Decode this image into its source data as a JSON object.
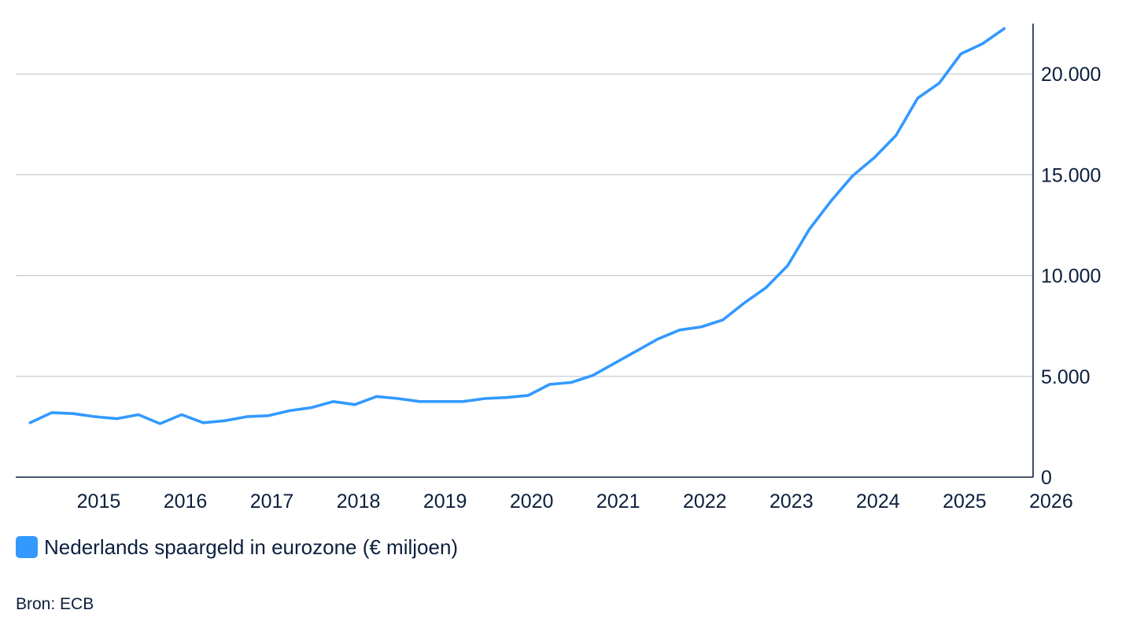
{
  "chart_data": {
    "type": "line",
    "title": "",
    "xlabel": "",
    "ylabel": "",
    "x_ticks": [
      "2015",
      "2016",
      "2017",
      "2018",
      "2019",
      "2020",
      "2021",
      "2022",
      "2023",
      "2024",
      "2025",
      "2026"
    ],
    "y_ticks": [
      "0",
      "5.000",
      "10.000",
      "15.000",
      "20.000"
    ],
    "y_tick_values": [
      0,
      5000,
      10000,
      15000,
      20000
    ],
    "ylim": [
      0,
      22500
    ],
    "xlim": [
      "2014-07",
      "2026-04"
    ],
    "y_axis_side": "right",
    "grid": "horizontal",
    "series": [
      {
        "name": "Nederlands spaargeld in eurozone (€ miljoen)",
        "color": "#3399ff",
        "x": [
          "2014-09",
          "2014-12",
          "2015-03",
          "2015-06",
          "2015-09",
          "2015-12",
          "2016-03",
          "2016-06",
          "2016-09",
          "2016-12",
          "2017-03",
          "2017-06",
          "2017-09",
          "2017-12",
          "2018-03",
          "2018-06",
          "2018-09",
          "2018-12",
          "2019-03",
          "2019-06",
          "2019-09",
          "2019-12",
          "2020-03",
          "2020-06",
          "2020-09",
          "2020-12",
          "2021-03",
          "2021-06",
          "2021-09",
          "2021-12",
          "2022-03",
          "2022-06",
          "2022-09",
          "2022-12",
          "2023-03",
          "2023-06",
          "2023-09",
          "2023-12",
          "2024-03",
          "2024-06",
          "2024-09",
          "2024-12",
          "2025-03",
          "2025-06",
          "2025-09",
          "2025-12"
        ],
        "values": [
          2700,
          3200,
          3150,
          3000,
          2900,
          3100,
          2650,
          3100,
          2700,
          2800,
          3000,
          3050,
          3300,
          3450,
          3750,
          3600,
          4000,
          3900,
          3750,
          3750,
          3750,
          3900,
          3950,
          4050,
          4600,
          4700,
          5050,
          5650,
          6250,
          6850,
          7300,
          7450,
          7800,
          8650,
          9400,
          10500,
          12300,
          13700,
          14950,
          15850,
          16950,
          18800,
          19550,
          21000,
          21500,
          22250
        ]
      }
    ],
    "legend_position": "bottom-left"
  },
  "legend": {
    "label": "Nederlands spaargeld in eurozone (€ miljoen)",
    "color": "#3399ff"
  },
  "source": {
    "text": "Bron: ECB"
  }
}
